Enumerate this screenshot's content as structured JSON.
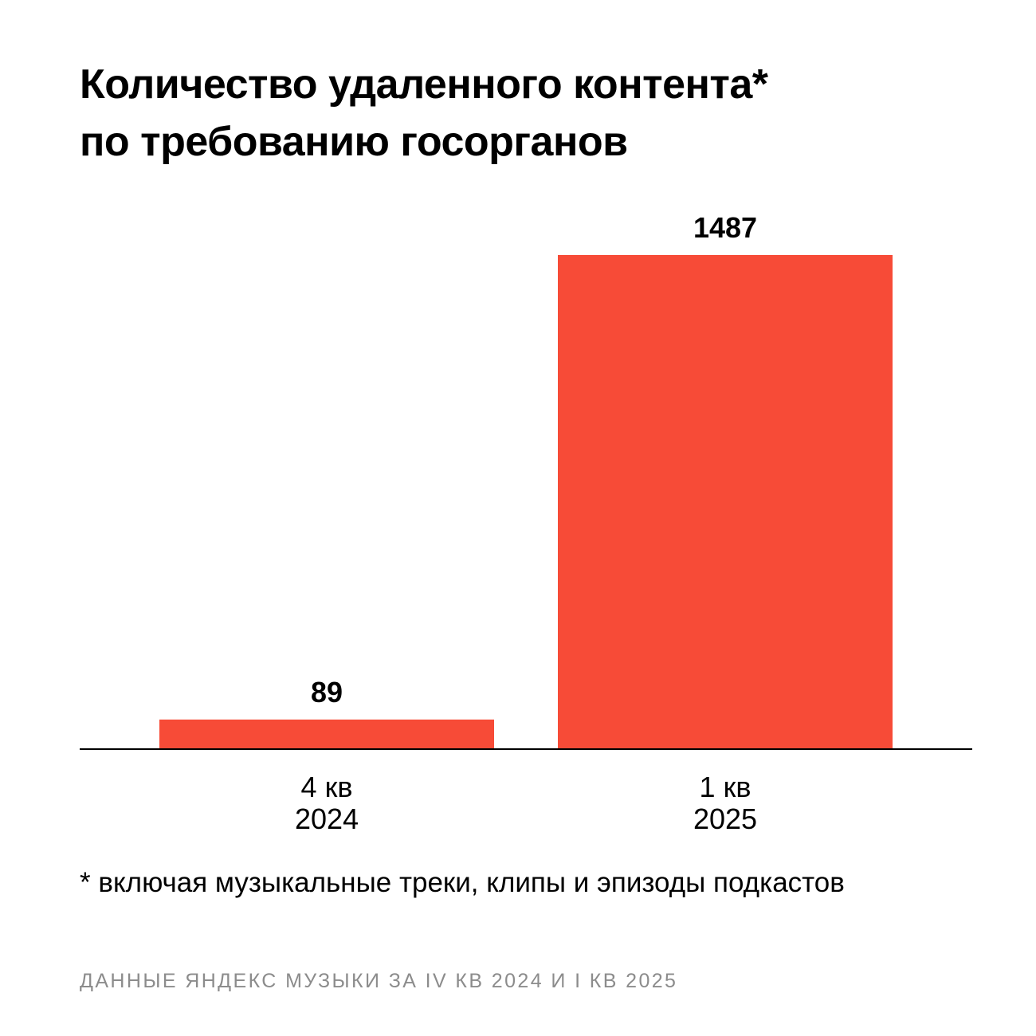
{
  "title_lines": [
    "Количество удаленного контента*",
    "по требованию госорганов"
  ],
  "footnote": "* включая музыкальные треки, клипы и эпизоды подкастов",
  "source": "ДАННЫЕ ЯНДЕКС МУЗЫКИ ЗА IV КВ 2024 И I КВ 2025",
  "colors": {
    "bar": "#f74b37",
    "axis": "#000000",
    "text": "#000000",
    "source_text": "#8c8c8c"
  },
  "chart_data": {
    "type": "bar",
    "categories": [
      [
        "4 кв",
        "2024"
      ],
      [
        "1 кв",
        "2025"
      ]
    ],
    "values": [
      89,
      1487
    ],
    "data_labels": [
      "89",
      "1487"
    ],
    "ylim": [
      0,
      1487
    ],
    "grid": false,
    "legend": "none"
  }
}
